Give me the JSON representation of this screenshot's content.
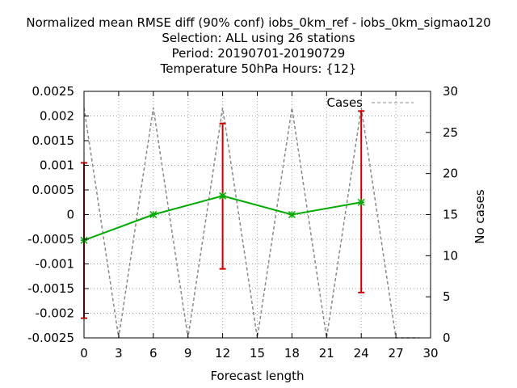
{
  "title_lines": [
    "Normalized mean RMSE diff (90% conf) iobs_0km_ref - iobs_0km_sigmao120",
    "Selection: ALL using    26 stations",
    "Period: 20190701-20190729",
    "Temperature 50hPa   Hours: {12}"
  ],
  "chart_data": {
    "type": "line",
    "xlabel": "Forecast length",
    "ylabel_left": "",
    "ylabel_right": "No cases",
    "xlim": [
      0,
      30
    ],
    "ylim": [
      -0.0025,
      0.0025
    ],
    "y2lim": [
      0,
      30
    ],
    "grid": true,
    "legend_position": "top-right",
    "x_ticks": [
      "0",
      "3",
      "6",
      "9",
      "12",
      "15",
      "18",
      "21",
      "24",
      "27",
      "30"
    ],
    "y_ticks": [
      "0.0025",
      "0.002",
      "0.0015",
      "0.001",
      "0.0005",
      "0",
      "-0.0005",
      "-0.001",
      "-0.0015",
      "-0.002",
      "-0.0025"
    ],
    "y2_ticks": [
      "30",
      "25",
      "20",
      "15",
      "10",
      "5",
      "0"
    ],
    "series": [
      {
        "name": "",
        "color": "#00aa00",
        "x": [
          0,
          6,
          12,
          18,
          24
        ],
        "y": [
          -0.00052,
          0.0,
          0.00038,
          0.0,
          0.00025
        ],
        "error_low": [
          -0.0021,
          0.0,
          -0.0011,
          0.0,
          -0.00158
        ],
        "error_high": [
          0.00105,
          0.0,
          0.00185,
          0.0,
          0.0021
        ],
        "error_color": "#cc0000"
      },
      {
        "name": "Cases",
        "color": "#888888",
        "dash": true,
        "axis": "right",
        "x": [
          0,
          3,
          6,
          9,
          12,
          15,
          18,
          21,
          24,
          27,
          29
        ],
        "y": [
          28,
          0,
          28,
          0,
          28,
          0,
          28,
          0,
          28,
          0,
          0
        ]
      }
    ]
  }
}
